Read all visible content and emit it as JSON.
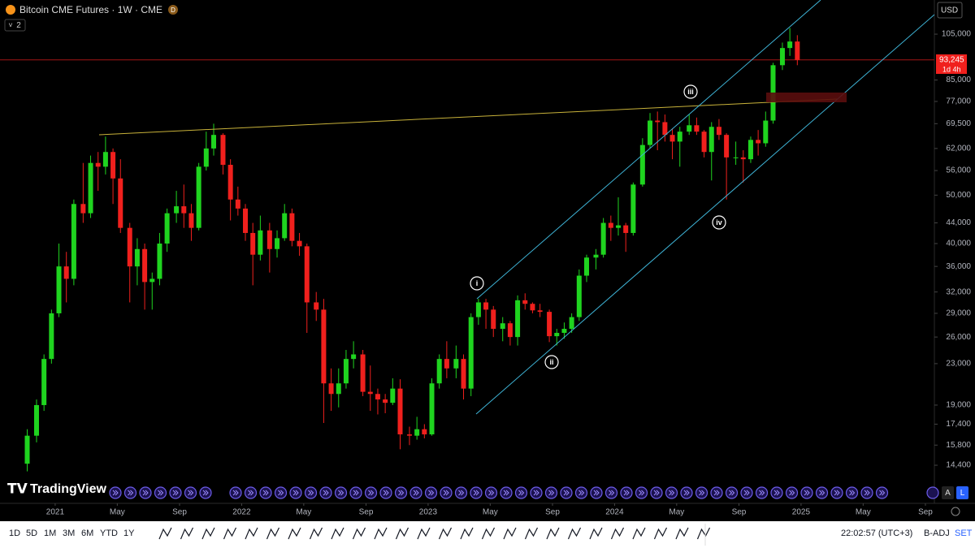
{
  "header": {
    "symbol": "Bitcoin CME Futures · 1W · CME",
    "badge": "D",
    "indicator_count": "2",
    "currency": "USD"
  },
  "logo": "TradingView",
  "chart_data": {
    "type": "candlestick",
    "x": [
      2020.85,
      2020.9,
      2020.94,
      2020.98,
      2021.02,
      2021.06,
      2021.1,
      2021.15,
      2021.19,
      2021.23,
      2021.27,
      2021.31,
      2021.35,
      2021.4,
      2021.44,
      2021.48,
      2021.52,
      2021.56,
      2021.6,
      2021.65,
      2021.69,
      2021.73,
      2021.77,
      2021.81,
      2021.85,
      2021.9,
      2021.94,
      2021.98,
      2022.02,
      2022.06,
      2022.1,
      2022.15,
      2022.19,
      2022.23,
      2022.27,
      2022.31,
      2022.35,
      2022.4,
      2022.44,
      2022.48,
      2022.52,
      2022.56,
      2022.6,
      2022.65,
      2022.69,
      2022.73,
      2022.77,
      2022.81,
      2022.85,
      2022.9,
      2022.94,
      2022.98,
      2023.02,
      2023.06,
      2023.1,
      2023.15,
      2023.19,
      2023.23,
      2023.27,
      2023.31,
      2023.35,
      2023.4,
      2023.44,
      2023.48,
      2023.52,
      2023.56,
      2023.6,
      2023.65,
      2023.69,
      2023.73,
      2023.77,
      2023.81,
      2023.85,
      2023.9,
      2023.94,
      2023.98,
      2024.02,
      2024.06,
      2024.1,
      2024.15,
      2024.19,
      2024.23,
      2024.27,
      2024.31,
      2024.35,
      2024.4,
      2024.44,
      2024.48,
      2024.52,
      2024.56,
      2024.6,
      2024.65,
      2024.69,
      2024.73,
      2024.77,
      2024.81,
      2024.85,
      2024.9,
      2024.94,
      2024.98
    ],
    "open": [
      14500,
      16500,
      19000,
      23500,
      29000,
      36000,
      34000,
      48000,
      46000,
      58000,
      57000,
      61000,
      54000,
      43000,
      36000,
      39000,
      33500,
      34000,
      40000,
      46000,
      47500,
      46000,
      43000,
      57000,
      62000,
      66000,
      57500,
      49000,
      47000,
      42000,
      38000,
      42500,
      39000,
      41000,
      46000,
      40500,
      39500,
      30500,
      29500,
      21000,
      20000,
      21000,
      23500,
      24000,
      20200,
      20000,
      19500,
      19200,
      20500,
      16600,
      16500,
      17000,
      16600,
      21000,
      23500,
      22500,
      23500,
      20500,
      28500,
      30500,
      29500,
      27000,
      27700,
      26000,
      30800,
      30300,
      29400,
      29200,
      26100,
      26500,
      27000,
      28500,
      34500,
      37500,
      38000,
      44000,
      43000,
      43500,
      42000,
      52500,
      63000,
      70500,
      70000,
      66000,
      64000,
      67000,
      69000,
      67000,
      61000,
      68500,
      66000,
      59500,
      59500,
      59000,
      64500,
      63500,
      70500,
      91000,
      98500,
      101500
    ],
    "high": [
      17000,
      19500,
      24000,
      29500,
      40000,
      38500,
      49000,
      58000,
      60000,
      61000,
      65500,
      62000,
      59000,
      44000,
      41000,
      40000,
      35000,
      42000,
      47000,
      51000,
      52500,
      48000,
      58000,
      67000,
      69500,
      66500,
      59000,
      52000,
      48000,
      44000,
      45500,
      44000,
      42500,
      48000,
      47000,
      42000,
      40000,
      32000,
      31000,
      22500,
      22500,
      24500,
      25500,
      24500,
      22800,
      20500,
      20000,
      21500,
      21400,
      17200,
      18000,
      17400,
      21500,
      24000,
      25500,
      25000,
      24000,
      29000,
      31000,
      31000,
      30000,
      28500,
      28000,
      31500,
      31800,
      30500,
      30300,
      29500,
      27000,
      27800,
      29000,
      35500,
      38000,
      39000,
      45000,
      45500,
      49500,
      44000,
      53000,
      65000,
      73000,
      73500,
      72500,
      68000,
      68500,
      72500,
      71500,
      67500,
      70000,
      71000,
      66500,
      64000,
      61500,
      65500,
      67500,
      73500,
      92000,
      101000,
      108000,
      104500
    ],
    "low": [
      14000,
      16000,
      18500,
      23000,
      28500,
      30500,
      33000,
      44000,
      45000,
      51000,
      55000,
      48000,
      42000,
      30500,
      33000,
      29500,
      29500,
      33000,
      38500,
      44000,
      43000,
      40500,
      42500,
      56000,
      60000,
      55000,
      44500,
      45500,
      40500,
      33000,
      37000,
      35000,
      37500,
      40500,
      39500,
      37800,
      26500,
      28000,
      17500,
      18500,
      18800,
      20500,
      22500,
      19800,
      18500,
      18200,
      18300,
      19000,
      15500,
      15800,
      16200,
      16300,
      16500,
      20500,
      21500,
      21500,
      19500,
      19800,
      27500,
      27000,
      26000,
      25500,
      25000,
      25000,
      29500,
      29000,
      28500,
      25400,
      25000,
      25800,
      26500,
      28000,
      33500,
      35500,
      37500,
      40500,
      41500,
      38500,
      41500,
      52000,
      62000,
      61500,
      64000,
      59000,
      57000,
      66000,
      66000,
      59500,
      53500,
      64500,
      49000,
      57500,
      53000,
      58000,
      60000,
      62500,
      69500,
      89000,
      95000,
      91000
    ],
    "close": [
      16500,
      19000,
      23500,
      29000,
      36000,
      34000,
      48000,
      46000,
      58000,
      57000,
      61000,
      54000,
      43000,
      36000,
      39000,
      33500,
      34000,
      40000,
      46000,
      47500,
      46000,
      43000,
      57000,
      62000,
      66000,
      57500,
      49000,
      47000,
      42000,
      38000,
      42500,
      39000,
      41000,
      46000,
      40500,
      39500,
      30500,
      29500,
      21000,
      20000,
      21000,
      23500,
      24000,
      20200,
      20000,
      19500,
      19200,
      20500,
      16600,
      16500,
      17000,
      16600,
      21000,
      23500,
      22500,
      23500,
      20500,
      28500,
      30500,
      29500,
      27000,
      27700,
      26000,
      30800,
      30300,
      29400,
      29200,
      26100,
      26500,
      27000,
      28500,
      34500,
      37500,
      38000,
      44000,
      43000,
      43500,
      42000,
      52500,
      63000,
      70500,
      70000,
      66000,
      64000,
      67000,
      69000,
      67000,
      61000,
      68500,
      66000,
      59500,
      59500,
      59000,
      64500,
      63500,
      70500,
      91000,
      98500,
      101500,
      93245
    ],
    "up_color": "#1fd41f",
    "down_color": "#f0201d",
    "xlim": [
      2020.704,
      2025.715
    ],
    "ylim": [
      12080,
      122900
    ],
    "log_scale": true,
    "xticks": [
      2021,
      {
        "value": 2021.333,
        "label": "May"
      },
      {
        "value": 2021.667,
        "label": "Sep"
      },
      2022,
      {
        "value": 2022.333,
        "label": "May"
      },
      {
        "value": 2022.667,
        "label": "Sep"
      },
      2023,
      {
        "value": 2023.333,
        "label": "May"
      },
      {
        "value": 2023.667,
        "label": "Sep"
      },
      2024,
      {
        "value": 2024.333,
        "label": "May"
      },
      {
        "value": 2024.667,
        "label": "Sep"
      },
      2025,
      {
        "value": 2025.333,
        "label": "May"
      },
      {
        "value": 2025.667,
        "label": "Sep"
      }
    ],
    "yticks": [
      {
        "value": 105000,
        "label": "105,000"
      },
      {
        "value": 85000,
        "label": "85,000"
      },
      {
        "value": 77000,
        "label": "77,000"
      },
      {
        "value": 69500,
        "label": "69,500"
      },
      {
        "value": 62000,
        "label": "62,000"
      },
      {
        "value": 56000,
        "label": "56,000"
      },
      {
        "value": 50000,
        "label": "50,000"
      },
      {
        "value": 44000,
        "label": "44,000"
      },
      {
        "value": 40000,
        "label": "40,000"
      },
      {
        "value": 36000,
        "label": "36,000"
      },
      {
        "value": 32000,
        "label": "32,000"
      },
      {
        "value": 29000,
        "label": "29,000"
      },
      {
        "value": 26000,
        "label": "26,000"
      },
      {
        "value": 23000,
        "label": "23,000"
      },
      {
        "value": 19000,
        "label": "19,000"
      },
      {
        "value": 17400,
        "label": "17,400"
      },
      {
        "value": 15800,
        "label": "15,800"
      },
      {
        "value": 14400,
        "label": "14,400"
      }
    ],
    "last_price": {
      "value": 93245,
      "label": "93,245"
    },
    "countdown": "1d 4h",
    "annotations": [
      "i",
      "ii",
      "iii",
      "iv"
    ]
  },
  "toolbar": {
    "ranges": [
      "1D",
      "5D",
      "1M",
      "3M",
      "6M",
      "YTD",
      "1Y"
    ],
    "clock": "22:02:57 (UTC+3)",
    "adjust": "B-ADJ",
    "settings": "SET",
    "scale_buttons": [
      "A",
      "L"
    ]
  }
}
